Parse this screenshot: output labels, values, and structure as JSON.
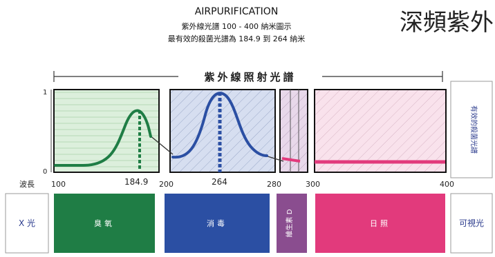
{
  "header": {
    "title": "AIRPURIFICATION",
    "subtitle_1": "紫外線光譜 100 - 400 納米圖示",
    "subtitle_2": "最有效的殺菌光譜為 184.9 到 264 納米",
    "corner_text": "深頻紫外"
  },
  "spectrum": {
    "bracket_label": "紫外線照射光譜",
    "right_panel_label": "有效的殺菌光譜",
    "y_axis_top": "1",
    "y_axis_bottom": "0",
    "wavelength_label": "波長",
    "ticks": [
      {
        "label": "100",
        "value": 100
      },
      {
        "label": "184.9",
        "value": 184.9
      },
      {
        "label": "200",
        "value": 200
      },
      {
        "label": "264",
        "value": 264
      },
      {
        "label": "280",
        "value": 280
      },
      {
        "label": "300",
        "value": 300
      },
      {
        "label": "400",
        "value": 400
      }
    ]
  },
  "bands": {
    "xray": "X 光",
    "ozone": "臭氧",
    "disinfect": "消毒",
    "vitamin_d": "維生素 D",
    "sunlight": "日照",
    "visible": "可視光"
  },
  "colors": {
    "green": "#1f7d45",
    "blue": "#2b4fa3",
    "purple": "#8a4d8f",
    "pink": "#e23a7c",
    "navy": "#2a3a8c"
  }
}
